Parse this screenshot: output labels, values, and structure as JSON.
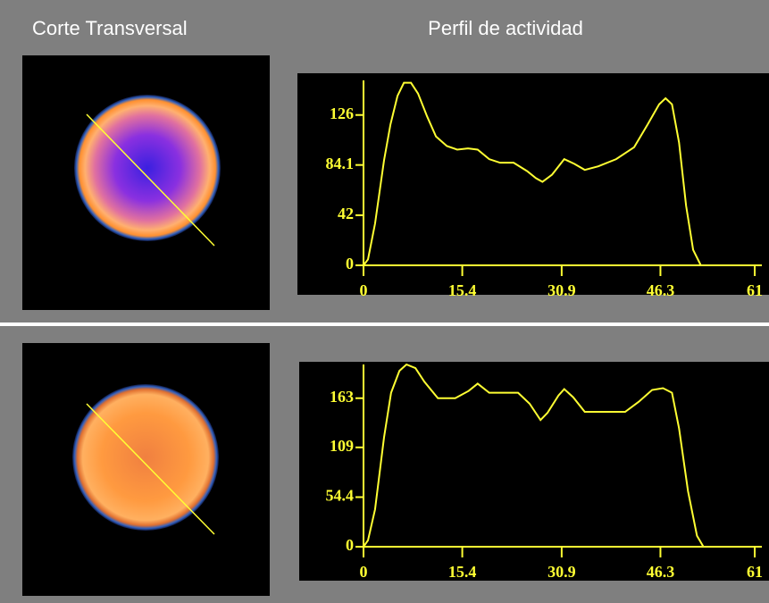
{
  "panel_headings": {
    "left": "Corte Transversal",
    "right": "Perfil de actividad"
  },
  "chart_data": [
    {
      "type": "line",
      "x": [
        0,
        0.7,
        1.8,
        3.2,
        4.2,
        5.3,
        6.3,
        7.4,
        8.5,
        9.9,
        11.3,
        13,
        14.6,
        16.3,
        17.8,
        19.6,
        21.3,
        23.4,
        25.5,
        26.9,
        27.9,
        29.4,
        31.3,
        32.9,
        34.5,
        36.6,
        39.4,
        42.2,
        44.3,
        46.1,
        47.1,
        48.1,
        49.2,
        50.3,
        51.4,
        52.6
      ],
      "series": [
        {
          "color": "#ffff33",
          "values": [
            0,
            5,
            35,
            88,
            118,
            142,
            153,
            153,
            144,
            125,
            108,
            100,
            97,
            98,
            97,
            89,
            86,
            86,
            79,
            73,
            70,
            76,
            89,
            85,
            80,
            83,
            89,
            99,
            118,
            135,
            140,
            135,
            103,
            50,
            13,
            0
          ]
        }
      ],
      "xlim": [
        0,
        61
      ],
      "ylim": [
        0,
        155
      ],
      "xticks": [
        0,
        15.4,
        30.9,
        46.3,
        61
      ],
      "yticks": [
        0,
        42,
        84.1,
        126
      ]
    },
    {
      "type": "line",
      "x": [
        0,
        0.7,
        1.8,
        3.2,
        4.3,
        5.6,
        6.7,
        8.1,
        9.5,
        11.6,
        14.3,
        16.4,
        17.8,
        19.6,
        22,
        24.1,
        25.9,
        27.6,
        28.7,
        30.4,
        31.3,
        32.7,
        34.5,
        36.6,
        38.7,
        40.8,
        42.9,
        45,
        46.7,
        48.1,
        49.2,
        50.6,
        52,
        53
      ],
      "series": [
        {
          "color": "#ffff33",
          "values": [
            0,
            7,
            41,
            120,
            169,
            193,
            200,
            196,
            181,
            163,
            163,
            171,
            179,
            169,
            169,
            169,
            157,
            139,
            147,
            166,
            173,
            164,
            148,
            148,
            148,
            148,
            159,
            172,
            174,
            169,
            130,
            61,
            12,
            0
          ]
        }
      ],
      "xlim": [
        0,
        61
      ],
      "ylim": [
        0,
        200
      ],
      "xticks": [
        0,
        15.4,
        30.9,
        46.3,
        61
      ],
      "yticks": [
        0,
        54.4,
        109,
        163
      ]
    }
  ]
}
